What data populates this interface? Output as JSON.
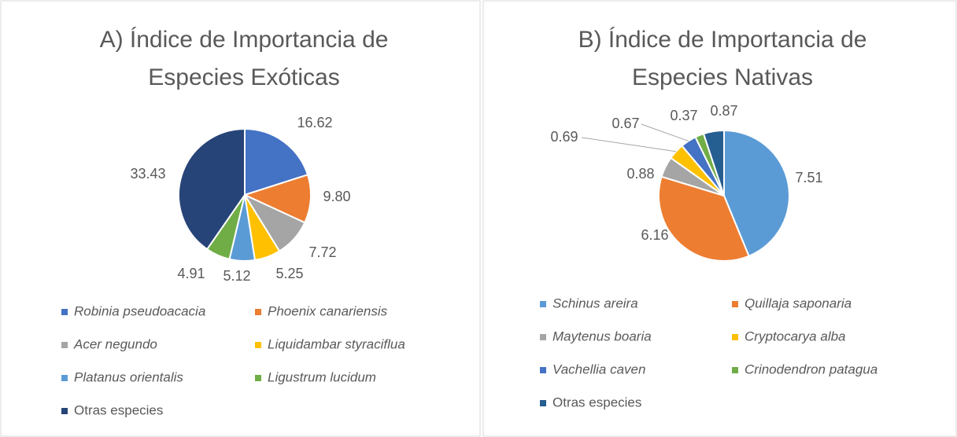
{
  "chart_data": [
    {
      "type": "pie",
      "title": [
        "A) Índice de Importancia de",
        "Especies Exóticas"
      ],
      "categories": [
        "Robinia pseudoacacia",
        "Phoenix canariensis",
        "Acer negundo",
        "Liquidambar styraciflua",
        "Platanus orientalis",
        "Ligustrum lucidum",
        "Otras especies"
      ],
      "values": [
        16.62,
        9.8,
        7.72,
        5.25,
        5.12,
        4.91,
        33.43
      ],
      "value_labels": [
        "16.62",
        "9.80",
        "7.72",
        "5.25",
        "5.12",
        "4.91",
        "33.43"
      ],
      "colors": [
        "#4472c4",
        "#ed7d31",
        "#a5a5a5",
        "#ffc000",
        "#5b9bd5",
        "#70ad47",
        "#264478"
      ],
      "legend": "bottom"
    },
    {
      "type": "pie",
      "title": [
        "B) Índice de Importancia de",
        "Especies Nativas"
      ],
      "categories": [
        "Schinus areira",
        "Quillaja saponaria",
        "Maytenus boaria",
        "Cryptocarya alba",
        "Vachellia caven",
        "Crinodendron patagua",
        "Otras especies"
      ],
      "values": [
        7.51,
        6.16,
        0.88,
        0.69,
        0.67,
        0.37,
        0.87
      ],
      "value_labels": [
        "7.51",
        "6.16",
        "0.88",
        "0.69",
        "0.67",
        "0.37",
        "0.87"
      ],
      "colors": [
        "#5b9bd5",
        "#ed7d31",
        "#a5a5a5",
        "#ffc000",
        "#4472c4",
        "#70ad47",
        "#255e91"
      ],
      "legend": "bottom"
    }
  ]
}
